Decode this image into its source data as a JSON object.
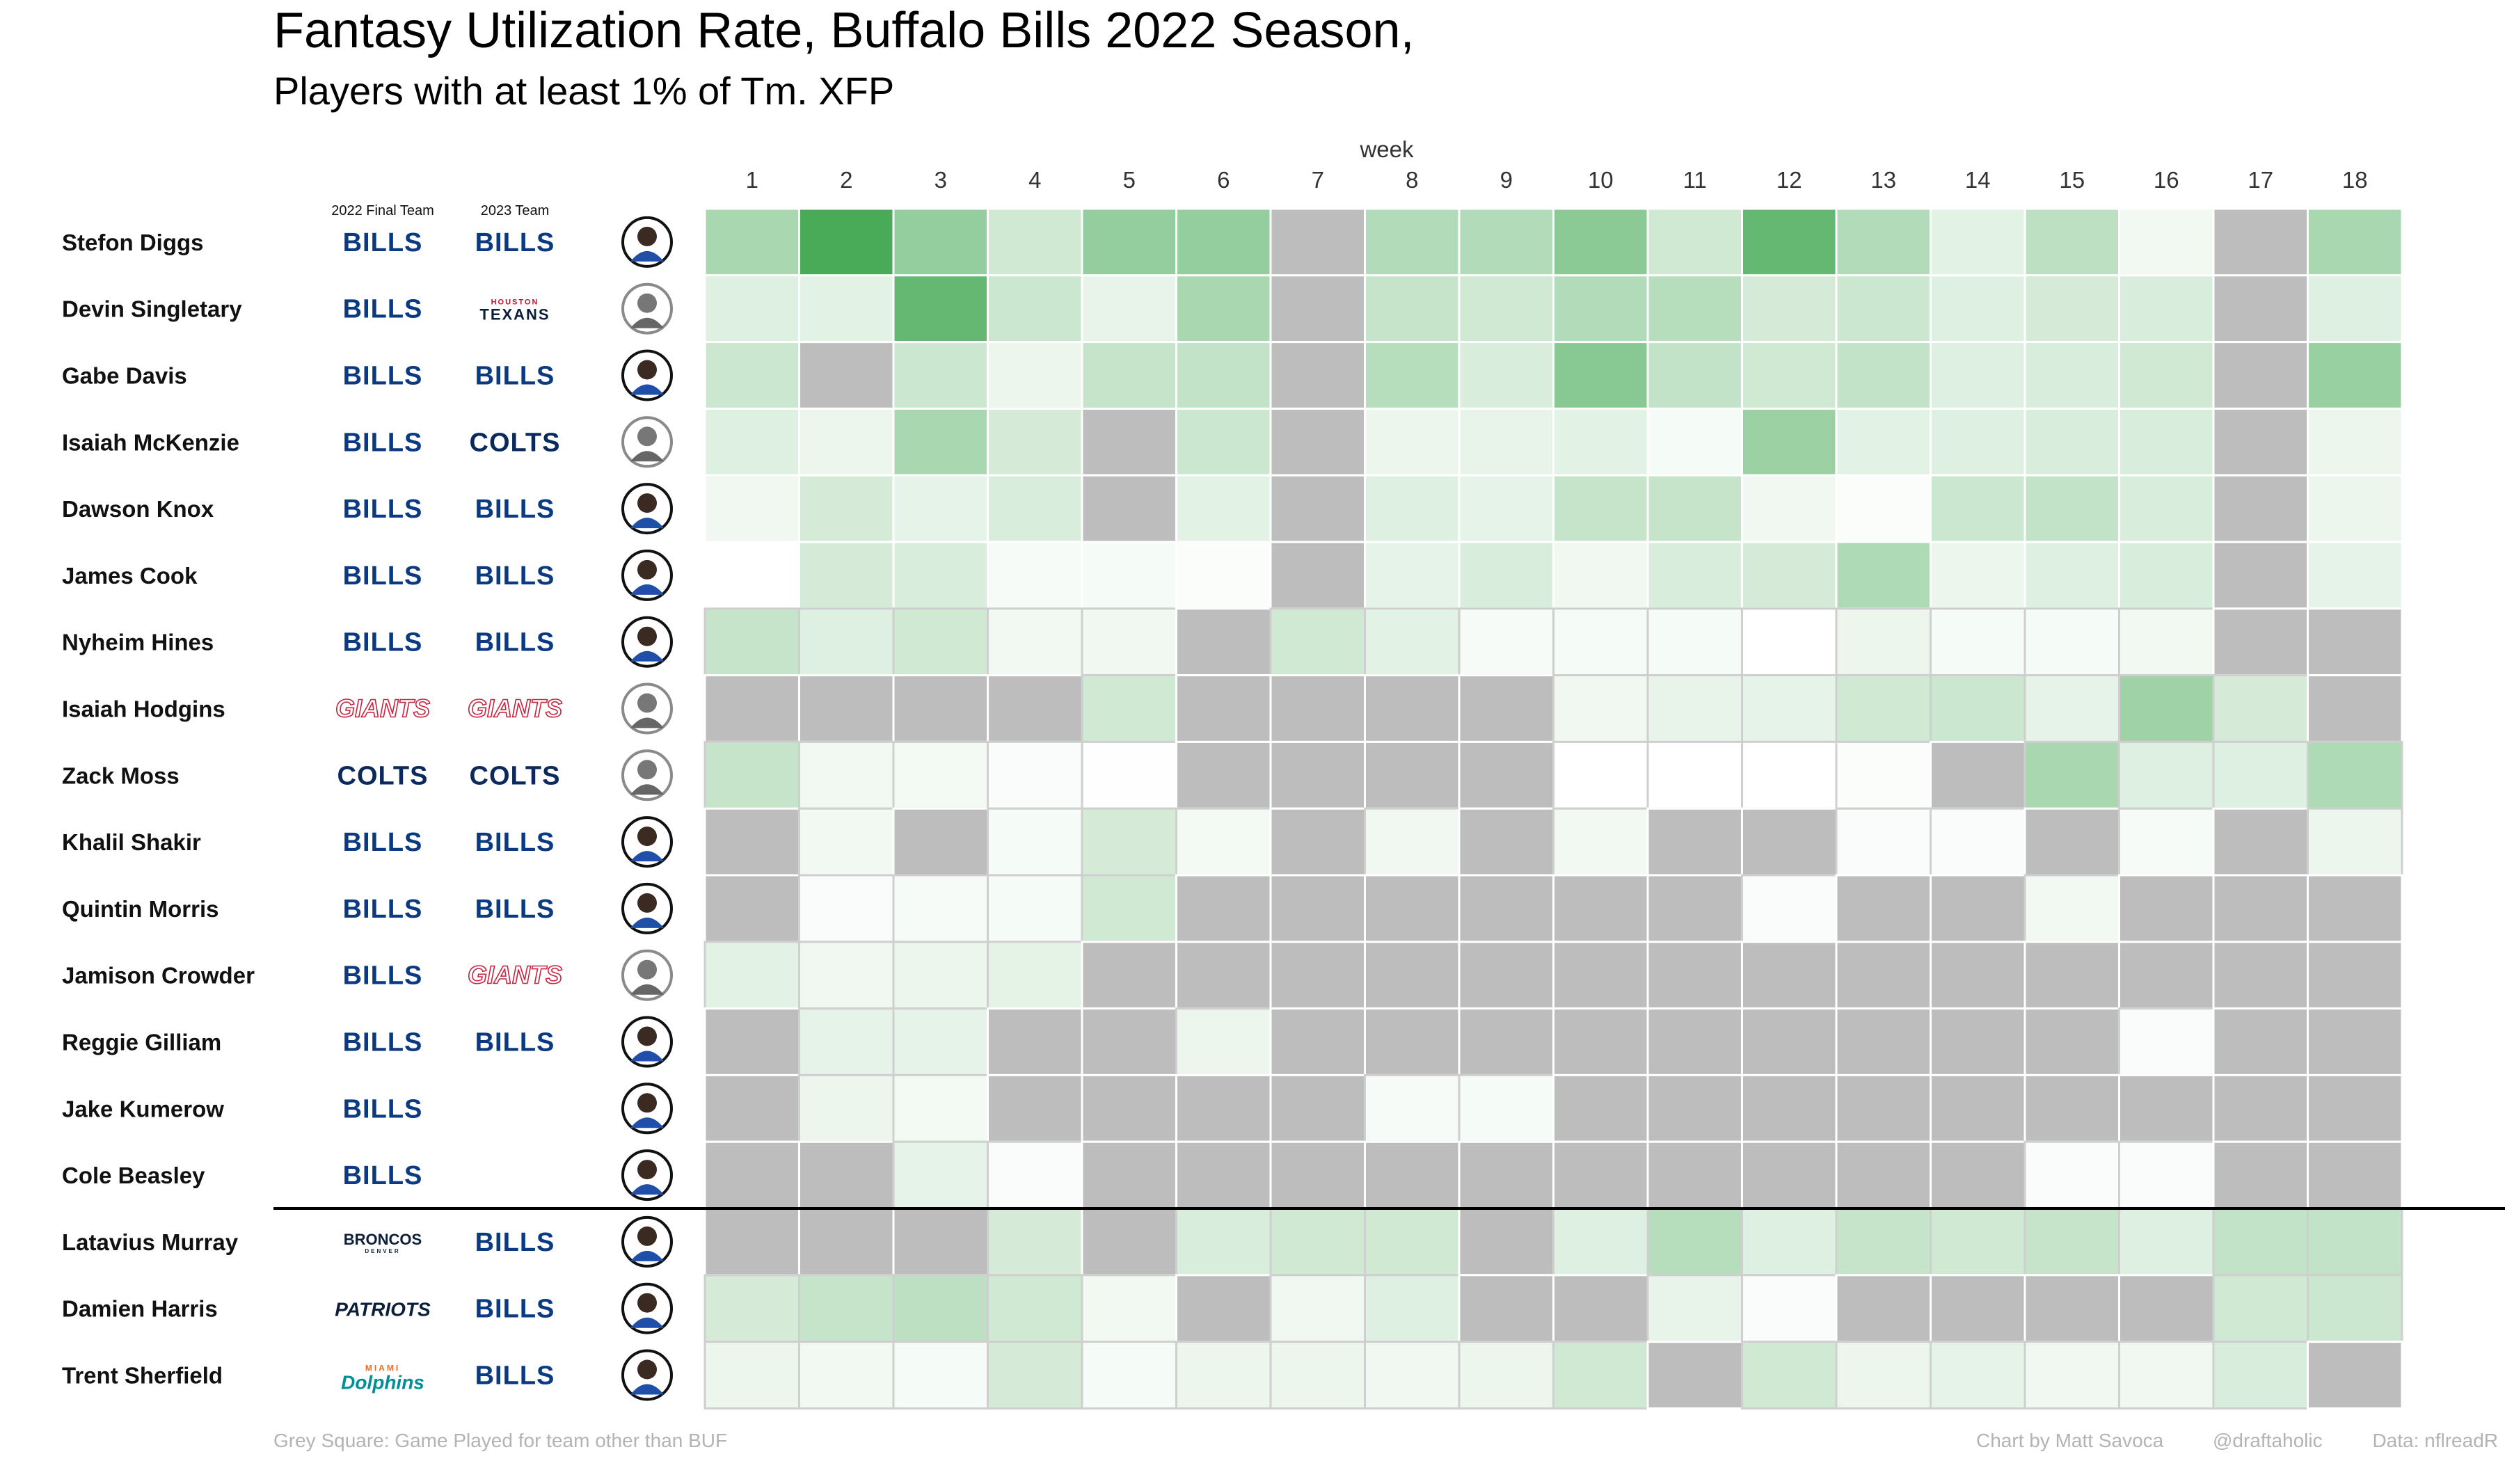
{
  "title": "Fantasy Utilization Rate, Buffalo Bills 2022 Season,",
  "subtitle": "Players with at least 1% of Tm. XFP",
  "column_headers": {
    "final_team": "2022 Final Team",
    "next_team": "2023 Team"
  },
  "footer": {
    "left": "Grey Square: Game Played for team other than BUF",
    "credit": "Chart by Matt Savoca",
    "handle": "@draftaholic",
    "source": "Data: nflreadR"
  },
  "teams": {
    "BUF": {
      "label": "BILLS",
      "color": "#0b3a82",
      "style": "block"
    },
    "HOU": {
      "label": "TEXANS",
      "sub": "HOUSTON",
      "color": "#0b1f3a",
      "style": "texans"
    },
    "IND": {
      "label": "COLTS",
      "color": "#0b2a5b",
      "style": "block"
    },
    "NYG": {
      "label": "GIANTS",
      "color": "#c9243f",
      "style": "giants"
    },
    "DEN": {
      "label": "BRONCOS",
      "sub": "DENVER",
      "color": "#0b1f3a",
      "style": "small"
    },
    "NE": {
      "label": "PATRIOTS",
      "color": "#0b1f3a",
      "style": "patriots"
    },
    "MIA": {
      "label": "Dolphins",
      "sub": "MIAMI",
      "color": "#008e97",
      "accent": "#f26a24",
      "style": "dolphins"
    }
  },
  "colors": {
    "low": "#ffffff",
    "high": "#3fa64f",
    "other_team": "#bdbdbd",
    "separator": "#000000"
  },
  "chart_data": {
    "type": "heatmap",
    "title": "Fantasy Utilization Rate, Buffalo Bills 2022 Season,",
    "subtitle": "Players with at least 1% of Tm. XFP",
    "xlabel": "week",
    "weeks": [
      "1",
      "2",
      "3",
      "4",
      "5",
      "6",
      "7",
      "8",
      "9",
      "10",
      "11",
      "12",
      "13",
      "14",
      "15",
      "16",
      "17",
      "18"
    ],
    "scale_max": 1.0,
    "note": "null = Grey Square: game played for team other than BUF; absent = no game",
    "separator_after_row": 14,
    "players": [
      {
        "name": "Stefon Diggs",
        "final": "BUF",
        "next": "BUF",
        "values": [
          0.45,
          0.95,
          0.55,
          0.25,
          0.55,
          0.55,
          null,
          0.4,
          0.4,
          0.6,
          0.25,
          0.8,
          0.4,
          0.15,
          0.35,
          0.07,
          null,
          0.45
        ]
      },
      {
        "name": "Devin Singletary",
        "final": "BUF",
        "next": "HOU",
        "values": [
          0.17,
          0.15,
          0.8,
          0.27,
          0.12,
          0.45,
          null,
          0.3,
          0.25,
          0.4,
          0.38,
          0.22,
          0.27,
          0.17,
          0.22,
          0.2,
          null,
          0.17
        ]
      },
      {
        "name": "Gabe Davis",
        "final": "BUF",
        "next": "BUF",
        "values": [
          0.27,
          null,
          0.27,
          0.1,
          0.3,
          0.32,
          null,
          0.38,
          0.2,
          0.62,
          0.32,
          0.25,
          0.32,
          0.17,
          0.2,
          0.25,
          null,
          0.53
        ]
      },
      {
        "name": "Isaiah McKenzie",
        "final": "BUF",
        "next": "IND",
        "values": [
          0.17,
          0.1,
          0.45,
          0.22,
          null,
          0.27,
          null,
          0.1,
          0.12,
          0.15,
          0.05,
          0.52,
          0.15,
          0.17,
          0.2,
          0.2,
          null,
          0.1
        ]
      },
      {
        "name": "Dawson Knox",
        "final": "BUF",
        "next": "BUF",
        "values": [
          0.08,
          0.22,
          0.13,
          0.2,
          null,
          0.15,
          null,
          0.17,
          0.13,
          0.3,
          0.3,
          0.08,
          0.02,
          0.27,
          0.32,
          0.2,
          null,
          0.1
        ]
      },
      {
        "name": "James Cook",
        "final": "BUF",
        "next": "BUF",
        "values": [
          0.0,
          0.22,
          0.2,
          0.04,
          0.05,
          0.02,
          null,
          0.13,
          0.2,
          0.08,
          0.2,
          0.22,
          0.42,
          0.1,
          0.17,
          0.2,
          null,
          0.13
        ]
      },
      {
        "name": "Nyheim Hines",
        "final": "BUF",
        "next": "BUF",
        "values": [
          0.3,
          0.17,
          0.25,
          0.07,
          0.08,
          null,
          0.25,
          0.15,
          0.04,
          0.05,
          0.05,
          0.0,
          0.1,
          0.05,
          0.05,
          0.07,
          null,
          null
        ]
      },
      {
        "name": "Isaiah Hodgins",
        "final": "NYG",
        "next": "NYG",
        "values": [
          null,
          null,
          null,
          null,
          0.25,
          null,
          null,
          null,
          null,
          0.08,
          0.12,
          0.13,
          0.25,
          0.27,
          0.13,
          0.5,
          0.22,
          null
        ]
      },
      {
        "name": "Zack Moss",
        "final": "IND",
        "next": "IND",
        "values": [
          0.3,
          0.07,
          0.06,
          0.03,
          0.01,
          null,
          null,
          null,
          null,
          0.0,
          0.0,
          0.0,
          0.02,
          null,
          0.45,
          0.17,
          0.17,
          0.42
        ]
      },
      {
        "name": "Khalil Shakir",
        "final": "BUF",
        "next": "BUF",
        "values": [
          null,
          0.07,
          null,
          0.05,
          0.22,
          0.06,
          null,
          0.08,
          null,
          0.07,
          null,
          null,
          0.03,
          0.03,
          null,
          0.04,
          null,
          0.1
        ]
      },
      {
        "name": "Quintin Morris",
        "final": "BUF",
        "next": "BUF",
        "values": [
          null,
          0.03,
          0.04,
          0.05,
          0.25,
          null,
          null,
          null,
          null,
          null,
          null,
          0.03,
          null,
          null,
          0.07,
          null,
          null,
          null
        ]
      },
      {
        "name": "Jamison Crowder",
        "final": "BUF",
        "next": "NYG",
        "values": [
          0.15,
          0.08,
          0.1,
          0.14,
          null,
          null,
          null,
          null,
          null,
          null,
          null,
          null,
          null,
          null,
          null,
          null,
          null,
          null
        ]
      },
      {
        "name": "Reggie Gilliam",
        "final": "BUF",
        "next": "BUF",
        "values": [
          null,
          0.13,
          0.13,
          null,
          null,
          0.1,
          null,
          null,
          null,
          null,
          null,
          null,
          null,
          null,
          null,
          0.03,
          null,
          null
        ]
      },
      {
        "name": "Jake Kumerow",
        "final": "BUF",
        "next": "",
        "values": [
          null,
          0.1,
          0.06,
          null,
          null,
          null,
          null,
          0.04,
          0.05,
          null,
          null,
          null,
          null,
          null,
          null,
          null,
          null,
          null
        ]
      },
      {
        "name": "Cole Beasley",
        "final": "BUF",
        "next": "",
        "values": [
          null,
          null,
          0.13,
          0.03,
          null,
          null,
          null,
          null,
          null,
          null,
          null,
          null,
          null,
          null,
          0.03,
          0.03,
          null,
          null
        ]
      },
      {
        "name": "Latavius Murray",
        "final": "DEN",
        "next": "BUF",
        "values": [
          null,
          null,
          null,
          0.22,
          null,
          0.2,
          0.25,
          0.25,
          null,
          0.17,
          0.38,
          0.17,
          0.3,
          0.25,
          0.3,
          0.17,
          0.32,
          0.32
        ]
      },
      {
        "name": "Damien Harris",
        "final": "NE",
        "next": "BUF",
        "values": [
          0.22,
          0.3,
          0.35,
          0.25,
          0.07,
          null,
          0.08,
          0.17,
          null,
          null,
          0.12,
          0.03,
          null,
          null,
          null,
          null,
          0.25,
          0.27
        ]
      },
      {
        "name": "Trent Sherfield",
        "final": "MIA",
        "next": "BUF",
        "values": [
          0.1,
          0.07,
          0.05,
          0.22,
          0.05,
          0.1,
          0.1,
          0.08,
          0.1,
          0.25,
          null,
          0.25,
          0.1,
          0.13,
          0.08,
          0.08,
          0.2,
          null
        ]
      }
    ]
  }
}
